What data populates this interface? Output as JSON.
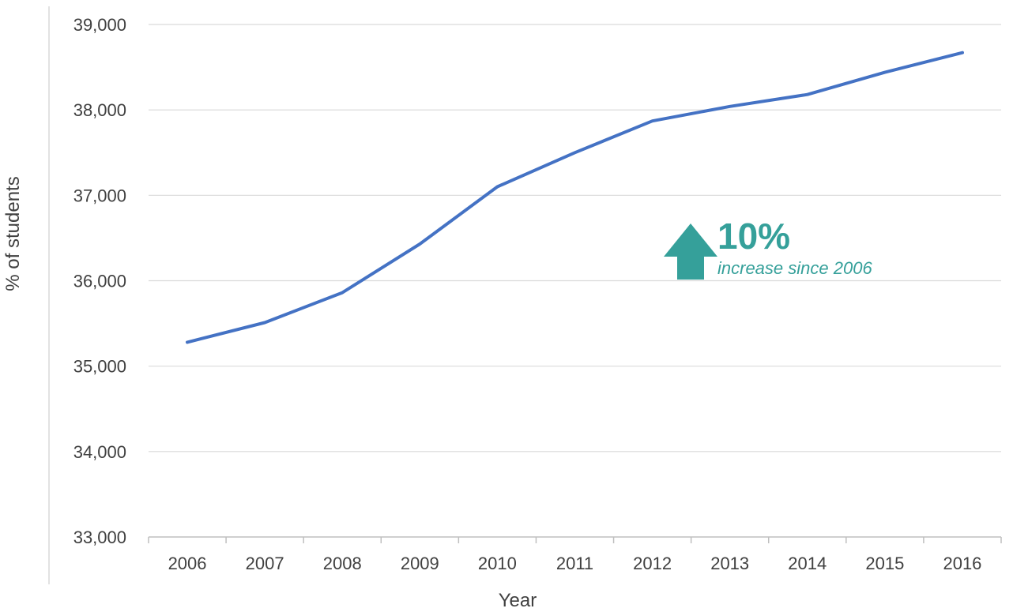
{
  "chart_data": {
    "type": "line",
    "title": "",
    "xlabel": "Year",
    "ylabel": "% of students",
    "categories": [
      "2006",
      "2007",
      "2008",
      "2009",
      "2010",
      "2011",
      "2012",
      "2013",
      "2014",
      "2015",
      "2016"
    ],
    "series": [
      {
        "values": [
          35280,
          35510,
          35860,
          36430,
          37100,
          37500,
          37870,
          38040,
          38180,
          38440,
          38670
        ],
        "color": "#4472C4"
      }
    ],
    "ylim": [
      33000,
      39000
    ],
    "yticks": [
      33000,
      34000,
      35000,
      36000,
      37000,
      38000,
      39000
    ],
    "ytick_labels": [
      "33,000",
      "34,000",
      "35,000",
      "36,000",
      "37,000",
      "38,000",
      "39,000"
    ],
    "grid": "horizontal",
    "legend": "none",
    "annotation": {
      "headline": "10%",
      "text": "increase since 2006",
      "icon": "up-arrow-icon",
      "color": "#35A09A"
    }
  }
}
